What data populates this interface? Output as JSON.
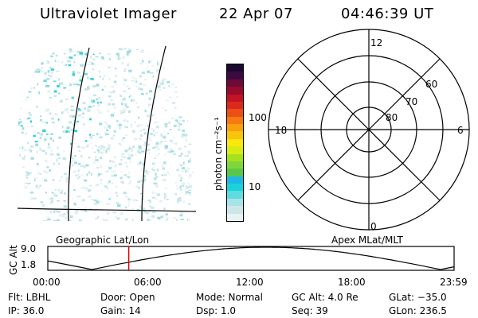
{
  "header": {
    "title": "Ultraviolet Imager",
    "date": "22 Apr 07",
    "time": "04:46:39 UT"
  },
  "colorbar": {
    "label": "photon cm⁻²s⁻¹",
    "ticks": [
      "100",
      "10"
    ],
    "colors": [
      "#e6f2f4",
      "#cfe6e9",
      "#a8e3e6",
      "#5edbe0",
      "#19d3d9",
      "#1fb8e6",
      "#57c84a",
      "#7fd63a",
      "#a6e11e",
      "#d8ec12",
      "#f8e80e",
      "#f9c40c",
      "#f9a010",
      "#f67a12",
      "#ea5016",
      "#db2a1c",
      "#c21424",
      "#9a0a2c",
      "#6c0a3a",
      "#3b0a40",
      "#1a0a30"
    ]
  },
  "polar_grid": {
    "mlt_labels": [
      "12",
      "18",
      "6",
      "0"
    ],
    "mlat_labels": [
      "60",
      "70",
      "80"
    ]
  },
  "timeline": {
    "left_label": "Geographic Lat/Lon",
    "right_label": "Apex MLat/MLT",
    "axis_title": "GC Alt",
    "y_ticks": [
      "9.0",
      "1.8"
    ],
    "x_ticks": [
      "00:00",
      "06:00",
      "12:00",
      "18:00",
      "23:59"
    ],
    "marker_time_hours": 4.78,
    "marker_color": "#e00000"
  },
  "status": {
    "flt": "Flt: LBHL",
    "door": "Door: Open",
    "mode": "Mode: Normal",
    "gc_alt": "GC Alt: 4.0 Re",
    "glat": "GLat: −35.0",
    "ip": "IP: 36.0",
    "gain": "Gain: 14",
    "dsp": "Dsp:   1.0",
    "seq": "Seq: 39",
    "glon": "GLon: 236.5"
  }
}
